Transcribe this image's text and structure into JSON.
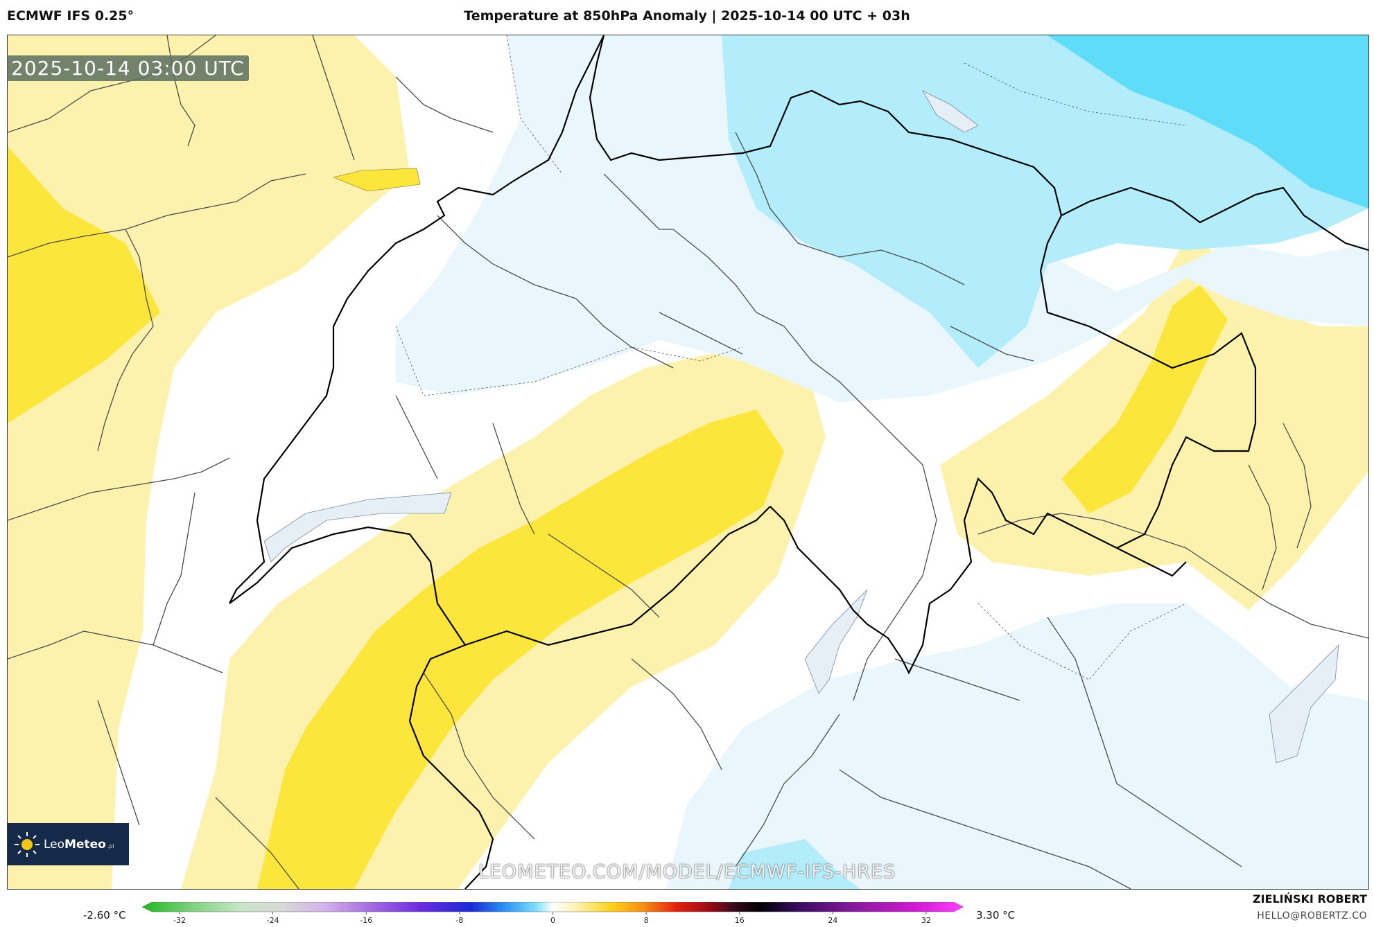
{
  "header": {
    "model": "ECMWF IFS 0.25°",
    "title": "Temperature at 850hPa Anomaly | 2025-10-14 00 UTC + 03h"
  },
  "map": {
    "timestamp": "2025-10-14 03:00 UTC",
    "watermark": "LEOMETEO.COM/MODEL/ECMWF-IFS-HRES",
    "colors": {
      "positive_light": "#fdf2ad",
      "positive_strong": "#fde63c",
      "neutral": "#ffffff",
      "negative_very_light": "#e9f7fd",
      "negative_light": "#b3ecfb",
      "negative_medium": "#5fdcf7",
      "border": "#000000",
      "admin_line": "#4a4a4a",
      "lake": "#e6eef6"
    }
  },
  "logo": {
    "name_light": "Leo",
    "name_bold": "Meteo",
    "suffix": ".pl"
  },
  "colorbar": {
    "min_label": "-2.60 °C",
    "max_label": "3.30 °C",
    "ticks": [
      "-32",
      "-24",
      "-16",
      "-8",
      "0",
      "8",
      "16",
      "24",
      "32"
    ]
  },
  "footer": {
    "author": "ZIELIŃSKI ROBERT",
    "email": "HELLO@ROBERTZ.CO"
  }
}
